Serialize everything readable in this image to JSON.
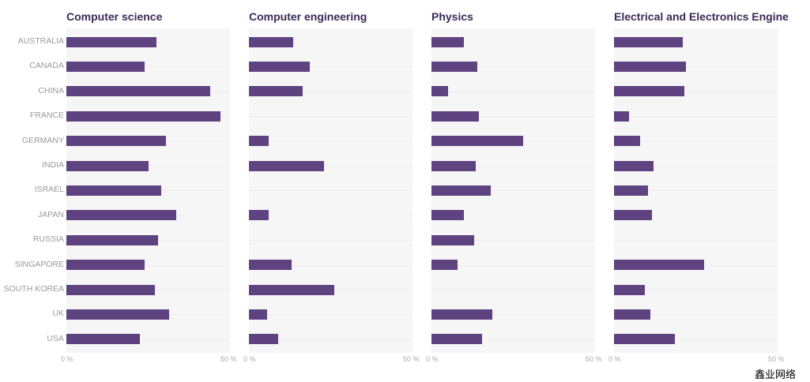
{
  "chart_data": [
    {
      "type": "bar",
      "orientation": "horizontal",
      "title": "Computer science",
      "xlim": [
        0,
        50
      ],
      "ticks": [
        "0 %",
        "50 %"
      ],
      "categories": [
        "AUSTRALIA",
        "CANADA",
        "CHINA",
        "FRANCE",
        "GERMANY",
        "INDIA",
        "ISRAEL",
        "JAPAN",
        "RUSSIA",
        "SINGAPORE",
        "SOUTH KOREA",
        "UK",
        "USA"
      ],
      "values": [
        27.5,
        24,
        44,
        47,
        30.5,
        25,
        29,
        33.5,
        28,
        24,
        27,
        31.5,
        22.5
      ]
    },
    {
      "type": "bar",
      "orientation": "horizontal",
      "title": "Computer engineering",
      "xlim": [
        0,
        50
      ],
      "ticks": [
        "0 %",
        "50 %"
      ],
      "categories": [
        "AUSTRALIA",
        "CANADA",
        "CHINA",
        "FRANCE",
        "GERMANY",
        "INDIA",
        "ISRAEL",
        "JAPAN",
        "RUSSIA",
        "SINGAPORE",
        "SOUTH KOREA",
        "UK",
        "USA"
      ],
      "values": [
        13.5,
        18.5,
        16.5,
        null,
        6,
        23,
        null,
        6,
        null,
        13,
        26,
        5.5,
        9
      ]
    },
    {
      "type": "bar",
      "orientation": "horizontal",
      "title": "Physics",
      "xlim": [
        0,
        50
      ],
      "ticks": [
        "0 %",
        "50 %"
      ],
      "categories": [
        "AUSTRALIA",
        "CANADA",
        "CHINA",
        "FRANCE",
        "GERMANY",
        "INDIA",
        "ISRAEL",
        "JAPAN",
        "RUSSIA",
        "SINGAPORE",
        "SOUTH KOREA",
        "UK",
        "USA"
      ],
      "values": [
        10,
        14,
        5,
        14.5,
        28,
        13.5,
        18,
        10,
        13,
        8,
        null,
        18.5,
        15.5
      ]
    },
    {
      "type": "bar",
      "orientation": "horizontal",
      "title": "Electrical and Electronics Enginee",
      "xlim": [
        0,
        50
      ],
      "ticks": [
        "0 %",
        "50 %"
      ],
      "categories": [
        "AUSTRALIA",
        "CANADA",
        "CHINA",
        "FRANCE",
        "GERMANY",
        "INDIA",
        "ISRAEL",
        "JAPAN",
        "RUSSIA",
        "SINGAPORE",
        "SOUTH KOREA",
        "UK",
        "USA"
      ],
      "values": [
        21,
        22,
        21.5,
        4.5,
        8,
        12,
        10.5,
        11.5,
        null,
        27.5,
        9.5,
        11,
        18.5
      ]
    }
  ],
  "colors": {
    "bar": "#5e4380",
    "title": "#3b2a55",
    "panel": "#f6f6f7"
  },
  "watermark": "鑫业网络"
}
